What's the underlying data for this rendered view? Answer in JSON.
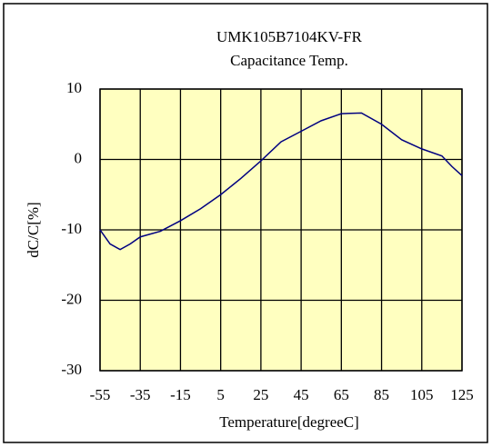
{
  "chart_data": {
    "type": "line",
    "title": [
      "UMK105B7104KV-FR",
      "Capacitance Temp."
    ],
    "x_label": "Temperature[degreeC]",
    "y_label": "dC/C[%]",
    "x": [
      -55,
      -50,
      -45,
      -40,
      -35,
      -25,
      -15,
      -5,
      5,
      15,
      25,
      35,
      45,
      55,
      65,
      75,
      85,
      95,
      105,
      115,
      120,
      125
    ],
    "values": [
      -10,
      -12,
      -12.8,
      -12,
      -11,
      -10.2,
      -8.7,
      -7,
      -5,
      -2.7,
      -0.2,
      2.5,
      4,
      5.5,
      6.5,
      6.6,
      5,
      2.8,
      1.5,
      0.5,
      -1,
      -2.3
    ],
    "color": "#000080",
    "xlim": [
      -55,
      125
    ],
    "xticks": [
      -55,
      -35,
      -15,
      5,
      25,
      45,
      65,
      85,
      105,
      125
    ],
    "ylim": [
      -30,
      10
    ],
    "yticks": [
      -30,
      -20,
      -10,
      0,
      10
    ],
    "grid": true
  }
}
